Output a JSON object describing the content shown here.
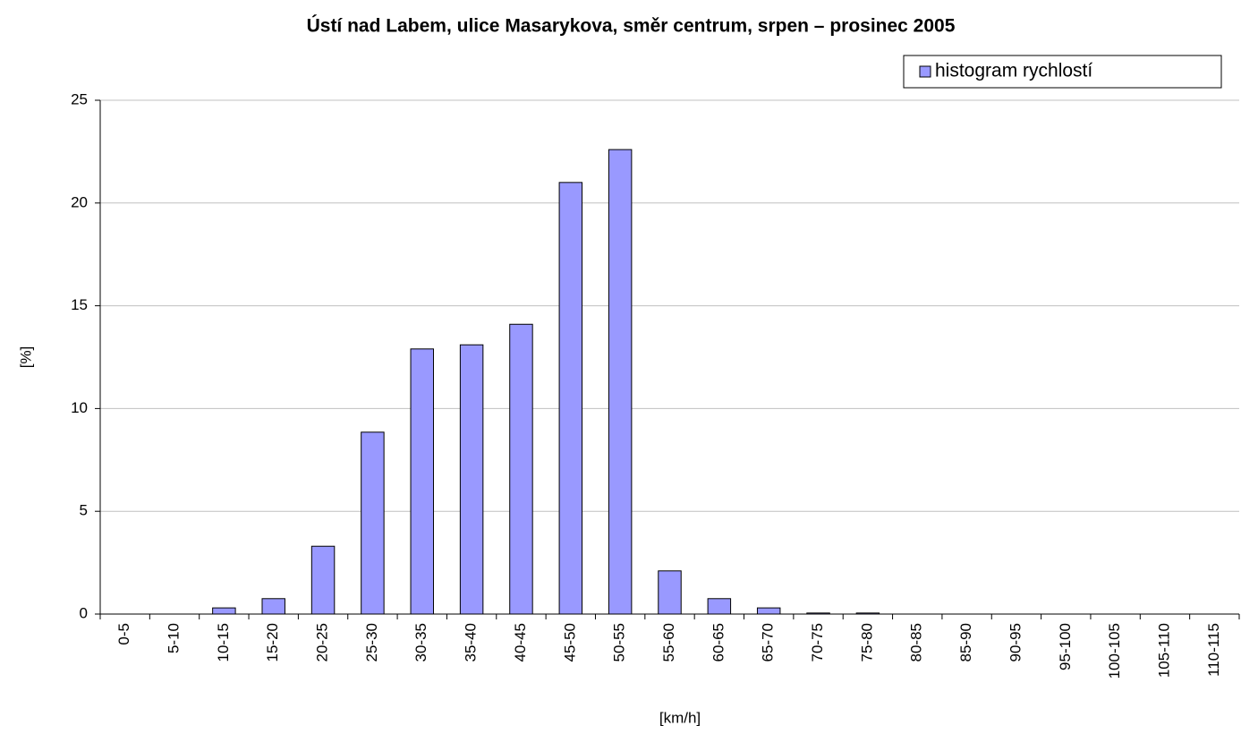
{
  "chart_data": {
    "type": "bar",
    "title": "Ústí nad Labem, ulice Masarykova, směr centrum, srpen – prosinec 2005",
    "x_label": "[km/h]",
    "y_label": "[%]",
    "categories": [
      "0-5",
      "5-10",
      "10-15",
      "15-20",
      "20-25",
      "25-30",
      "30-35",
      "35-40",
      "40-45",
      "45-50",
      "50-55",
      "55-60",
      "60-65",
      "65-70",
      "70-75",
      "75-80",
      "80-85",
      "85-90",
      "90-95",
      "95-100",
      "100-105",
      "105-110",
      "110-115"
    ],
    "series": [
      {
        "name": "histogram rychlostí",
        "color": "#9999ff",
        "values": [
          0,
          0,
          0.3,
          0.75,
          3.3,
          8.85,
          12.9,
          13.1,
          14.1,
          21.0,
          22.6,
          2.1,
          0.75,
          0.3,
          0.05,
          0.05,
          0,
          0,
          0,
          0,
          0,
          0,
          0
        ]
      }
    ],
    "ylim": [
      0,
      25
    ],
    "yticks": [
      0,
      5,
      10,
      15,
      20,
      25
    ],
    "grid": true,
    "legend": "top-right"
  }
}
